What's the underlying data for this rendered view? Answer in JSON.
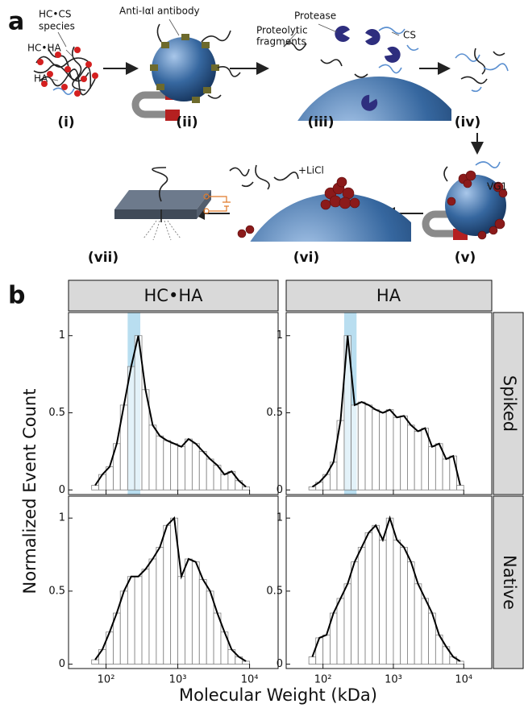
{
  "panel_a": {
    "label": "a",
    "hc_cs_species": [
      "HC•CS",
      "species"
    ],
    "hc_ha": "HC•HA",
    "ha": "HA",
    "antibody": "Anti-IαI antibody",
    "protease": "Protease",
    "fragments": [
      "Proteolytic",
      "fragments"
    ],
    "cs": "CS",
    "licl": "+LiCl",
    "vg1": "VG1",
    "steps": [
      "(i)",
      "(ii)",
      "(iii)",
      "(iv)",
      "(v)",
      "(vi)",
      "(vii)"
    ]
  },
  "panel_b": {
    "label": "b",
    "column_labels": [
      "HC•HA",
      "HA"
    ],
    "row_labels": [
      "Spiked",
      "Native"
    ],
    "y_label": "Normalized Event Count",
    "x_label": "Molecular Weight (kDa)"
  },
  "chart_data": [
    {
      "type": "histogram",
      "xscale": "log",
      "color": "#ffffff",
      "edgecolor": "#808080",
      "line_color": "#000000",
      "highlight": [
        200,
        300
      ],
      "highlight_color": "#b9def0",
      "bins": [
        63,
        79,
        100,
        126,
        158,
        200,
        251,
        316,
        398,
        501,
        631,
        794,
        1000,
        1259,
        1585,
        1995,
        2512,
        3162,
        3981,
        5012,
        6310,
        7943,
        10000
      ],
      "values": [
        0.03,
        0.1,
        0.15,
        0.3,
        0.55,
        0.8,
        1.0,
        0.65,
        0.42,
        0.35,
        0.32,
        0.3,
        0.28,
        0.33,
        0.3,
        0.25,
        0.2,
        0.16,
        0.1,
        0.12,
        0.06,
        0.02
      ],
      "xlim": [
        30,
        25000
      ],
      "xticks": [
        100,
        1000,
        10000
      ],
      "ylim": [
        -0.03,
        1.15
      ],
      "yticks": [
        0,
        0.5,
        1
      ]
    },
    {
      "type": "histogram",
      "xscale": "log",
      "color": "#ffffff",
      "edgecolor": "#808080",
      "line_color": "#000000",
      "highlight": [
        200,
        300
      ],
      "highlight_color": "#b9def0",
      "bins": [
        63,
        79,
        100,
        126,
        158,
        200,
        251,
        316,
        398,
        501,
        631,
        794,
        1000,
        1259,
        1585,
        1995,
        2512,
        3162,
        3981,
        5012,
        6310,
        7943,
        10000
      ],
      "values": [
        0.02,
        0.05,
        0.1,
        0.18,
        0.45,
        1.0,
        0.55,
        0.57,
        0.55,
        0.52,
        0.5,
        0.52,
        0.47,
        0.48,
        0.42,
        0.38,
        0.4,
        0.28,
        0.3,
        0.2,
        0.22,
        0.03
      ],
      "xlim": [
        30,
        25000
      ],
      "xticks": [
        100,
        1000,
        10000
      ],
      "ylim": [
        -0.03,
        1.15
      ],
      "yticks": [
        0,
        0.5,
        1
      ]
    },
    {
      "type": "histogram",
      "xscale": "log",
      "color": "#ffffff",
      "edgecolor": "#808080",
      "line_color": "#000000",
      "bins": [
        63,
        79,
        100,
        126,
        158,
        200,
        251,
        316,
        398,
        501,
        631,
        794,
        1000,
        1259,
        1585,
        1995,
        2512,
        3162,
        3981,
        5012,
        6310,
        7943,
        10000
      ],
      "values": [
        0.03,
        0.1,
        0.22,
        0.35,
        0.5,
        0.6,
        0.6,
        0.65,
        0.72,
        0.8,
        0.95,
        1.0,
        0.6,
        0.72,
        0.7,
        0.58,
        0.5,
        0.35,
        0.22,
        0.1,
        0.05,
        0.02
      ],
      "xlim": [
        30,
        25000
      ],
      "xticks": [
        {
          "value": 100,
          "label": "10²"
        },
        {
          "value": 1000,
          "label": "10³"
        },
        {
          "value": 10000,
          "label": "10⁴"
        }
      ],
      "ylim": [
        -0.03,
        1.15
      ],
      "yticks": [
        0,
        0.5,
        1
      ]
    },
    {
      "type": "histogram",
      "xscale": "log",
      "color": "#ffffff",
      "edgecolor": "#808080",
      "line_color": "#000000",
      "bins": [
        63,
        79,
        100,
        126,
        158,
        200,
        251,
        316,
        398,
        501,
        631,
        794,
        1000,
        1259,
        1585,
        1995,
        2512,
        3162,
        3981,
        5012,
        6310,
        7943,
        10000
      ],
      "values": [
        0.05,
        0.18,
        0.2,
        0.35,
        0.45,
        0.55,
        0.7,
        0.8,
        0.9,
        0.95,
        0.85,
        1.0,
        0.85,
        0.8,
        0.7,
        0.55,
        0.45,
        0.35,
        0.2,
        0.12,
        0.05,
        0.02
      ],
      "xlim": [
        30,
        25000
      ],
      "xticks": [
        {
          "value": 100,
          "label": "10²"
        },
        {
          "value": 1000,
          "label": "10³"
        },
        {
          "value": 10000,
          "label": "10⁴"
        }
      ],
      "ylim": [
        -0.03,
        1.15
      ],
      "yticks": [
        0,
        0.5,
        1
      ]
    }
  ]
}
